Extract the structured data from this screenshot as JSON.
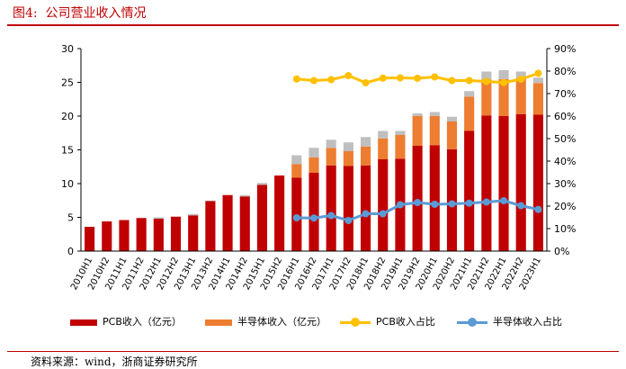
{
  "figure": {
    "title": "图4:  公司营业收入情况",
    "source": "资料来源：wind，浙商证券研究所"
  },
  "colors": {
    "pcb_revenue": "#c00000",
    "semi_revenue": "#ed7d31",
    "other_segment": "#bfbfbf",
    "pcb_share": "#ffc000",
    "semi_share": "#5b9bd5",
    "title_red": "#c00000"
  },
  "chart_data": {
    "type": "bar",
    "stacked": true,
    "categories": [
      "2010H1",
      "2010H2",
      "2011H1",
      "2011H2",
      "2012H1",
      "2012H2",
      "2013H1",
      "2013H2",
      "2014H1",
      "2014H2",
      "2015H1",
      "2015H2",
      "2016H1",
      "2016H2",
      "2017H1",
      "2017H2",
      "2018H1",
      "2018H2",
      "2019H1",
      "2019H2",
      "2020H1",
      "2020H2",
      "2021H1",
      "2021H2",
      "2022H1",
      "2022H2",
      "2023H1"
    ],
    "series": [
      {
        "name": "PCB收入（亿元）",
        "type": "bar",
        "axis": "left",
        "values": [
          3.6,
          4.4,
          4.6,
          4.9,
          4.8,
          5.1,
          5.3,
          7.4,
          8.3,
          8.1,
          9.8,
          11.2,
          10.9,
          11.6,
          12.7,
          12.6,
          12.7,
          13.6,
          13.7,
          15.6,
          15.7,
          15.1,
          17.8,
          20.1,
          20.0,
          20.3,
          20.2
        ]
      },
      {
        "name": "半导体收入（亿元）",
        "type": "bar",
        "axis": "left",
        "values": [
          null,
          null,
          null,
          null,
          null,
          null,
          null,
          null,
          null,
          null,
          null,
          null,
          2.0,
          2.3,
          2.6,
          2.2,
          2.8,
          3.1,
          3.5,
          4.4,
          4.3,
          4.1,
          5.1,
          5.3,
          5.5,
          5.3,
          4.7
        ]
      },
      {
        "name": "",
        "type": "bar",
        "axis": "left",
        "values": [
          0,
          0,
          0,
          0,
          0.2,
          0,
          0.2,
          0.1,
          0,
          0.2,
          0.3,
          0,
          1.3,
          1.4,
          1.2,
          1.3,
          1.4,
          1.1,
          0.6,
          0.4,
          0.6,
          0.7,
          0.8,
          1.2,
          1.3,
          1.0,
          0.8
        ]
      },
      {
        "name": "PCB收入占比",
        "type": "line",
        "axis": "right",
        "values": [
          null,
          null,
          null,
          null,
          null,
          null,
          null,
          null,
          null,
          null,
          null,
          null,
          76.5,
          75.8,
          76.2,
          78.0,
          74.8,
          76.9,
          77.0,
          76.8,
          77.4,
          75.8,
          75.8,
          75.4,
          74.9,
          76.4,
          79.0
        ]
      },
      {
        "name": "半导体收入占比",
        "type": "line",
        "axis": "right",
        "values": [
          null,
          null,
          null,
          null,
          null,
          null,
          null,
          null,
          null,
          null,
          null,
          null,
          14.8,
          14.7,
          15.8,
          13.6,
          16.6,
          16.6,
          20.6,
          21.6,
          20.8,
          21.0,
          21.3,
          21.8,
          22.4,
          20.2,
          18.5
        ]
      }
    ],
    "y_left": {
      "min": 0,
      "max": 30,
      "ticks": [
        "0",
        "5",
        "10",
        "15",
        "20",
        "25",
        "30"
      ]
    },
    "y_right": {
      "min": 0,
      "max": 90,
      "ticks": [
        "0%",
        "10%",
        "20%",
        "30%",
        "40%",
        "50%",
        "60%",
        "70%",
        "80%",
        "90%"
      ]
    },
    "grid": false,
    "legend_position": "bottom"
  },
  "legend": [
    {
      "label": "PCB收入（亿元）",
      "kind": "bar",
      "color": "#c00000"
    },
    {
      "label": "半导体收入（亿元）",
      "kind": "bar",
      "color": "#ed7d31"
    },
    {
      "label": "PCB收入占比",
      "kind": "line",
      "color": "#ffc000"
    },
    {
      "label": "半导体收入占比",
      "kind": "line",
      "color": "#5b9bd5"
    }
  ]
}
